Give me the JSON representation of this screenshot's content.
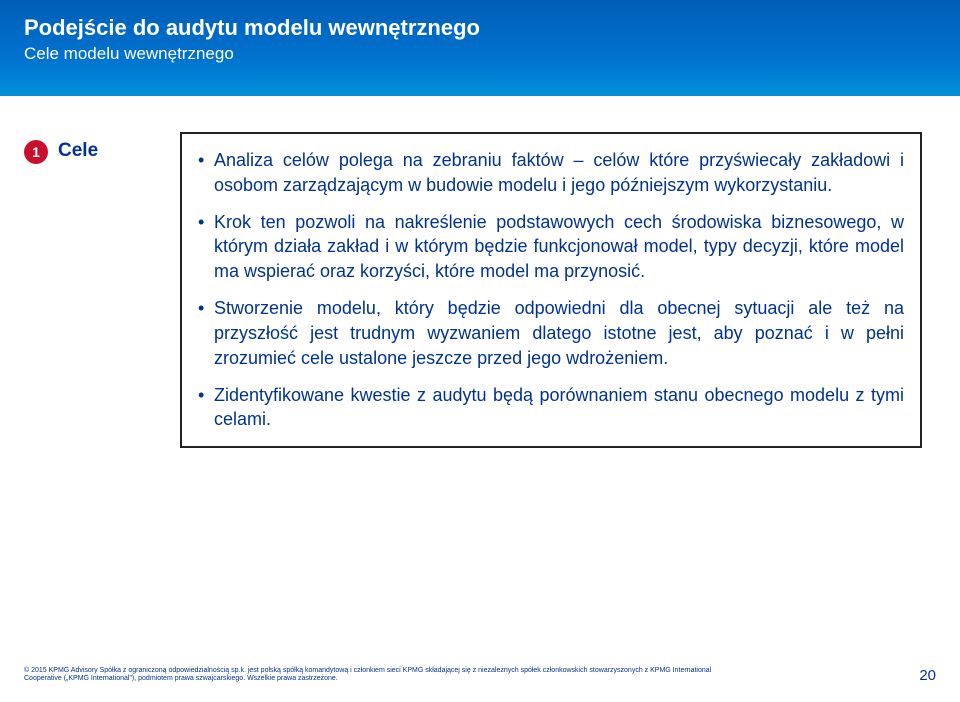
{
  "header": {
    "title": "Podejście do audytu modelu wewnętrznego",
    "subtitle": "Cele modelu wewnętrznego"
  },
  "badge": {
    "number": "1"
  },
  "side_label": "Cele",
  "bullets": [
    "Analiza celów polega na zebraniu faktów – celów które przyświecały zakładowi i osobom zarządzającym w budowie modelu i jego późniejszym wykorzystaniu.",
    "Krok ten pozwoli na nakreślenie podstawowych cech środowiska biznesowego, w którym działa zakład i w którym będzie funkcjonował model, typy decyzji, które model ma wspierać oraz korzyści, które model ma przynosić.",
    "Stworzenie modelu, który będzie odpowiedni dla obecnej sytuacji ale też na przyszłość jest trudnym wyzwaniem dlatego istotne jest, aby poznać i w pełni zrozumieć cele ustalone jeszcze przed jego wdrożeniem.",
    "Zidentyfikowane kwestie z audytu będą porównaniem stanu obecnego modelu z tymi celami."
  ],
  "footer": {
    "copyright": "© 2015 KPMG Advisory Spółka z ograniczoną odpowiedzialnością sp.k. jest polską spółką komandytową i członkiem sieci KPMG składającej się z niezależnych spółek członkowskich stowarzyszonych z KPMG International Cooperative („KPMG International\"), podmiotem prawa szwajcarskiego. Wszelkie prawa zastrzeżone.",
    "page": "20"
  },
  "colors": {
    "brand_blue": "#00338d",
    "accent_red": "#c8102e",
    "header_top": "#005eb8",
    "header_bottom": "#0091da",
    "box_border": "#222222",
    "bg": "#ffffff"
  }
}
